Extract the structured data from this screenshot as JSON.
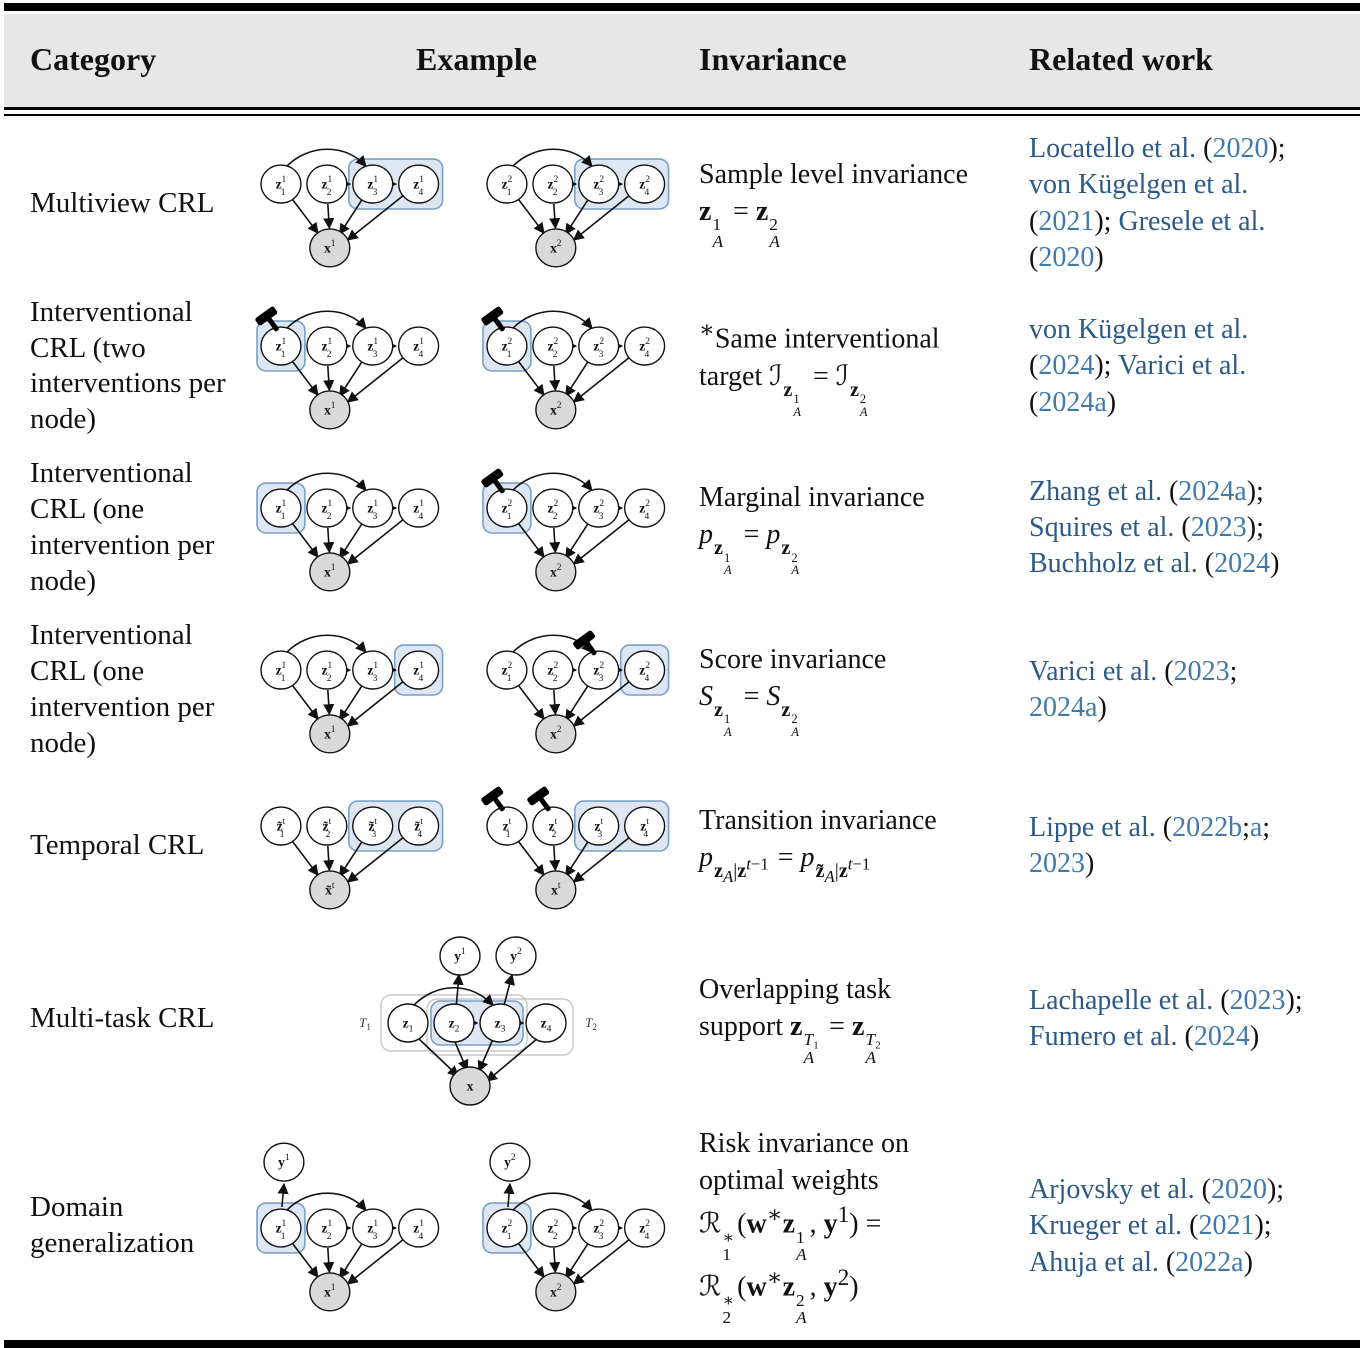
{
  "colors": {
    "citation_name": "#2d5986",
    "citation_year": "#4179ab",
    "highlight_fill": "#dce7f3",
    "highlight_stroke": "#7aa0c6",
    "observed_node_fill": "#d9d9d9",
    "latent_node_fill": "#ffffff",
    "header_bg": "#e7e7e7",
    "edge_stroke": "#111111"
  },
  "icons": {
    "intervention_hammer": "hammer-icon",
    "highlight_box": "blue rounded rectangle around invariant latents",
    "observed_node": "shaded circle"
  },
  "diagram_defaults": {
    "latent_letter": "z",
    "observed_letter": "x",
    "target_letter": "y",
    "task_labels": [
      [
        "T",
        "1"
      ],
      [
        "T",
        "2"
      ]
    ]
  },
  "table": {
    "headers": [
      "Category",
      "Example",
      "Invariance",
      "Related work"
    ],
    "rows": [
      {
        "category": "Multiview CRL",
        "example": {
          "graphs": [
            {
              "kind": "chain",
              "zsup": "1",
              "xsup": "1",
              "box": [
                3,
                4
              ],
              "hammers": []
            },
            {
              "kind": "chain",
              "zsup": "2",
              "xsup": "2",
              "box": [
                3,
                4
              ],
              "hammers": []
            }
          ]
        },
        "invariance_html": "Sample level invariance<br><b>z</b><span class='tower'><span>1</span><span><i>A</i></span></span> = <b>z</b><span class='tower'><span>2</span><span><i>A</i></span></span>",
        "related_html": "<span class='cn' data-name='citation-link' data-interactable='true'>Locatello et al.</span> (<span class='cy' data-name='citation-link' data-interactable='true'>2020</span>);<br><span class='cn' data-name='citation-link' data-interactable='true'>von Kügelgen et al.</span><br>(<span class='cy' data-name='citation-link' data-interactable='true'>2021</span>); <span class='cn' data-name='citation-link' data-interactable='true'>Gresele et al.</span><br>(<span class='cy' data-name='citation-link' data-interactable='true'>2020</span>)"
      },
      {
        "category": "Interventional CRL (two interventions per node)",
        "example": {
          "graphs": [
            {
              "kind": "chain",
              "zsup": "1",
              "xsup": "1",
              "box": [
                1,
                1
              ],
              "hammers": [
                1
              ]
            },
            {
              "kind": "chain",
              "zsup": "2",
              "xsup": "2",
              "box": [
                1,
                1
              ],
              "hammers": [
                1
              ]
            }
          ]
        },
        "invariance_html": "<sup>∗</sup>Same interventional<br>target <span class='scr'>ℐ</span><span class='sub2'><b>z</b><span class='tower'><span>1</span><span><i>A</i></span></span></span> = <span class='scr'>ℐ</span><span class='sub2'><b>z</b><span class='tower'><span>2</span><span><i>A</i></span></span></span>",
        "related_html": "<span class='cn' data-name='citation-link' data-interactable='true'>von Kügelgen et al.</span><br>(<span class='cy' data-name='citation-link' data-interactable='true'>2024</span>); <span class='cn' data-name='citation-link' data-interactable='true'>Varici et al.</span><br>(<span class='cy' data-name='citation-link' data-interactable='true'>2024a</span>)"
      },
      {
        "category": "Interventional CRL (one intervention per node)",
        "example": {
          "graphs": [
            {
              "kind": "chain",
              "zsup": "1",
              "xsup": "1",
              "box": [
                1,
                1
              ],
              "hammers": []
            },
            {
              "kind": "chain",
              "zsup": "2",
              "xsup": "2",
              "box": [
                1,
                1
              ],
              "hammers": [
                1
              ]
            }
          ]
        },
        "invariance_html": "Marginal invariance<br><i>p</i><span class='sub2'><b>z</b><span class='tower'><span>1</span><span><i>A</i></span></span></span> = <i>p</i><span class='sub2'><b>z</b><span class='tower'><span>2</span><span><i>A</i></span></span></span>",
        "related_html": "<span class='cn' data-name='citation-link' data-interactable='true'>Zhang et al.</span> (<span class='cy' data-name='citation-link' data-interactable='true'>2024a</span>);<br><span class='cn' data-name='citation-link' data-interactable='true'>Squires et al.</span> (<span class='cy' data-name='citation-link' data-interactable='true'>2023</span>);<br><span class='cn' data-name='citation-link' data-interactable='true'>Buchholz et al.</span> (<span class='cy' data-name='citation-link' data-interactable='true'>2024</span>)"
      },
      {
        "category": "Interventional CRL (one intervention per node)",
        "example": {
          "graphs": [
            {
              "kind": "chain",
              "zsup": "1",
              "xsup": "1",
              "box": [
                4,
                4
              ],
              "hammers": []
            },
            {
              "kind": "chain",
              "zsup": "2",
              "xsup": "2",
              "box": [
                4,
                4
              ],
              "hammers": [
                3
              ]
            }
          ]
        },
        "invariance_html": "Score invariance<br><i>S</i><span class='sub2'><b>z</b><span class='tower'><span>1</span><span><i>A</i></span></span></span> = <i>S</i><span class='sub2'><b>z</b><span class='tower'><span>2</span><span><i>A</i></span></span></span>",
        "related_html": "<span class='cn' data-name='citation-link' data-interactable='true'>Varici et al.</span> (<span class='cy' data-name='citation-link' data-interactable='true'>2023</span>;<br><span class='cy' data-name='citation-link' data-interactable='true'>2024a</span>)"
      },
      {
        "category": "Temporal CRL",
        "example": {
          "graphs": [
            {
              "kind": "temporal",
              "tilde": true,
              "zsup": "t",
              "xsup": "t",
              "box": [
                3,
                4
              ],
              "hammers": []
            },
            {
              "kind": "temporal",
              "tilde": false,
              "zsup": "t",
              "xsup": "t",
              "box": [
                3,
                4
              ],
              "hammers": [
                1,
                2
              ]
            }
          ]
        },
        "invariance_html": "Transition invariance<br><i>p</i><span class='sub2'><b>z</b><sub><i>A</i></sub>|<b>z</b><sup><i>t</i>−1</sup></span> = <i>p</i><span class='sub2'><b>z̃</b><sub><i>A</i></sub>|<b>z</b><sup><i>t</i>−1</sup></span>",
        "related_html": "<span class='cn' data-name='citation-link' data-interactable='true'>Lippe et al.</span> (<span class='cy' data-name='citation-link' data-interactable='true'>2022b</span>;<span class='cy' data-name='citation-link' data-interactable='true'>a</span>;<br><span class='cy' data-name='citation-link' data-interactable='true'>2023</span>)"
      },
      {
        "category": "Multi-task CRL",
        "example": {
          "graphs": [
            {
              "kind": "multitask"
            }
          ]
        },
        "invariance_html": "Overlapping task<br>support <b>z</b><span class='tower'><span><i>T</i>₁</span><span><i>A</i></span></span> = <b>z</b><span class='tower'><span><i>T</i>₂</span><span><i>A</i></span></span>",
        "related_html": "<span class='cn' data-name='citation-link' data-interactable='true'>Lachapelle et al.</span> (<span class='cy' data-name='citation-link' data-interactable='true'>2023</span>);<br><span class='cn' data-name='citation-link' data-interactable='true'>Fumero et al.</span> (<span class='cy' data-name='citation-link' data-interactable='true'>2024</span>)"
      },
      {
        "category": "Domain generalization",
        "example": {
          "graphs": [
            {
              "kind": "domain",
              "zsup": "1",
              "xsup": "1",
              "ysup": "1",
              "box": [
                1,
                1
              ],
              "hammers": []
            },
            {
              "kind": "domain",
              "zsup": "2",
              "xsup": "2",
              "ysup": "2",
              "box": [
                1,
                1
              ],
              "hammers": []
            }
          ]
        },
        "invariance_html": "Risk invariance on<br>optimal weights<br><span class='scr'>ℛ</span><span class='tower'><span>∗</span><span>1</span></span>(<b>w</b><sup>∗</sup><b>z</b><span class='tower'><span>1</span><span><i>A</i></span></span>, <b>y</b><sup>1</sup>) =<br><span class='scr'>ℛ</span><span class='tower'><span>∗</span><span>2</span></span>(<b>w</b><sup>∗</sup><b>z</b><span class='tower'><span>2</span><span><i>A</i></span></span>, <b>y</b><sup>2</sup>)",
        "related_html": "<span class='cn' data-name='citation-link' data-interactable='true'>Arjovsky et al.</span> (<span class='cy' data-name='citation-link' data-interactable='true'>2020</span>);<br><span class='cn' data-name='citation-link' data-interactable='true'>Krueger et al.</span> (<span class='cy' data-name='citation-link' data-interactable='true'>2021</span>);<br><span class='cn' data-name='citation-link' data-interactable='true'>Ahuja et al.</span> (<span class='cy' data-name='citation-link' data-interactable='true'>2022a</span>)"
      }
    ]
  }
}
